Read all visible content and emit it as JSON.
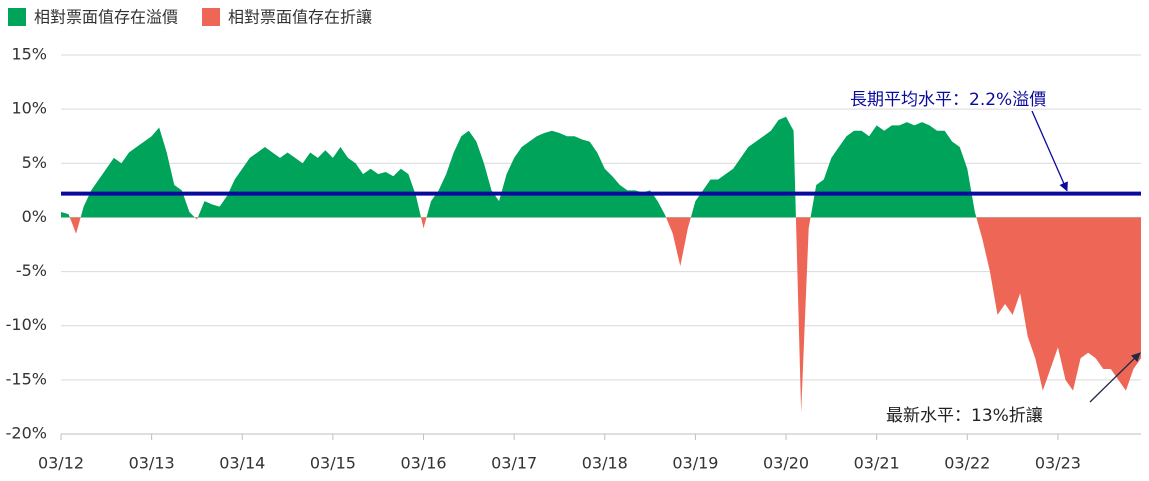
{
  "chart_data": {
    "type": "area",
    "legend": [
      {
        "name": "相對票面值存在溢價",
        "color": "#00a35a"
      },
      {
        "name": "相對票面值存在折讓",
        "color": "#ee6655"
      }
    ],
    "x": [
      0,
      1,
      2,
      3,
      4,
      5,
      6,
      7,
      8,
      9,
      10,
      11,
      12,
      13,
      14,
      15,
      16,
      17,
      18,
      19,
      20,
      21,
      22,
      23,
      24,
      25,
      26,
      27,
      28,
      29,
      30,
      31,
      32,
      33,
      34,
      35,
      36,
      37,
      38,
      39,
      40,
      41,
      42,
      43,
      44,
      45,
      46,
      47,
      48,
      49,
      50,
      51,
      52,
      53,
      54,
      55,
      56,
      57,
      58,
      59,
      60,
      61,
      62,
      63,
      64,
      65,
      66,
      67,
      68,
      69,
      70,
      71,
      72,
      73,
      74,
      75,
      76,
      77,
      78,
      79,
      80,
      81,
      82,
      83,
      84,
      85,
      86,
      87,
      88,
      89,
      90,
      91,
      92,
      93,
      94,
      95,
      96,
      97,
      98,
      99,
      100,
      101,
      102,
      103,
      104,
      105,
      106,
      107,
      108,
      109,
      110,
      111,
      112,
      113,
      114,
      115,
      116,
      117,
      118,
      119,
      120,
      121,
      122,
      123,
      124,
      125,
      126,
      127,
      128,
      129,
      130,
      131,
      132,
      133,
      134,
      135,
      136,
      137,
      138,
      139,
      140,
      141,
      142,
      143
    ],
    "values": [
      0.5,
      0.3,
      -1.5,
      1,
      2.5,
      3.5,
      4.5,
      5.5,
      5,
      6,
      6.5,
      7,
      7.5,
      8.3,
      6,
      3,
      2.5,
      0.5,
      -0.2,
      1.5,
      1.2,
      1,
      2,
      3.5,
      4.5,
      5.5,
      6,
      6.5,
      6,
      5.5,
      6,
      5.5,
      5,
      6,
      5.5,
      6.2,
      5.5,
      6.5,
      5.5,
      5,
      4,
      4.5,
      4,
      4.2,
      3.8,
      4.5,
      4,
      2,
      -1,
      1.5,
      2.5,
      4,
      6,
      7.5,
      8,
      7,
      5,
      2.5,
      1.5,
      4,
      5.5,
      6.5,
      7,
      7.5,
      7.8,
      8,
      7.8,
      7.5,
      7.5,
      7.2,
      7,
      6,
      4.5,
      3.8,
      3,
      2.5,
      2.5,
      2.3,
      2.5,
      1.5,
      0.2,
      -1.5,
      -4.5,
      -1,
      1.5,
      2.5,
      3.5,
      3.5,
      4,
      4.5,
      5.5,
      6.5,
      7,
      7.5,
      8,
      9,
      9.3,
      8,
      -18,
      -1,
      3,
      3.5,
      5.5,
      6.5,
      7.5,
      8,
      8,
      7.5,
      8.5,
      8,
      8.5,
      8.5,
      8.8,
      8.5,
      8.8,
      8.5,
      8,
      8,
      7,
      6.5,
      4.5,
      0.5,
      -2,
      -5,
      -9,
      -8,
      -9,
      -7,
      -11,
      -13,
      -16,
      -14,
      -12,
      -15,
      -16,
      -13,
      -12.5,
      -13,
      -14,
      -14,
      -15,
      -16,
      -14,
      -13
    ],
    "xlim": [
      0,
      143
    ],
    "xticks": [
      {
        "value": 0,
        "label": "03/12"
      },
      {
        "value": 12,
        "label": "03/13"
      },
      {
        "value": 24,
        "label": "03/14"
      },
      {
        "value": 36,
        "label": "03/15"
      },
      {
        "value": 48,
        "label": "03/16"
      },
      {
        "value": 60,
        "label": "03/17"
      },
      {
        "value": 72,
        "label": "03/18"
      },
      {
        "value": 84,
        "label": "03/19"
      },
      {
        "value": 96,
        "label": "03/20"
      },
      {
        "value": 108,
        "label": "03/21"
      },
      {
        "value": 120,
        "label": "03/22"
      },
      {
        "value": 132,
        "label": "03/23"
      }
    ],
    "ylim": [
      -20,
      15
    ],
    "yticks": [
      {
        "value": 15,
        "label": "15%"
      },
      {
        "value": 10,
        "label": "10%"
      },
      {
        "value": 5,
        "label": "5%"
      },
      {
        "value": 0,
        "label": "0%"
      },
      {
        "value": -5,
        "label": "-5%"
      },
      {
        "value": -10,
        "label": "-10%"
      },
      {
        "value": -15,
        "label": "-15%"
      },
      {
        "value": -20,
        "label": "-20%"
      }
    ],
    "grid": true,
    "reference_line": {
      "value": 2.2,
      "color": "#0a0a9c"
    },
    "annotations": [
      "長期平均水平：2.2%溢價",
      "最新水平：13%折讓"
    ]
  }
}
